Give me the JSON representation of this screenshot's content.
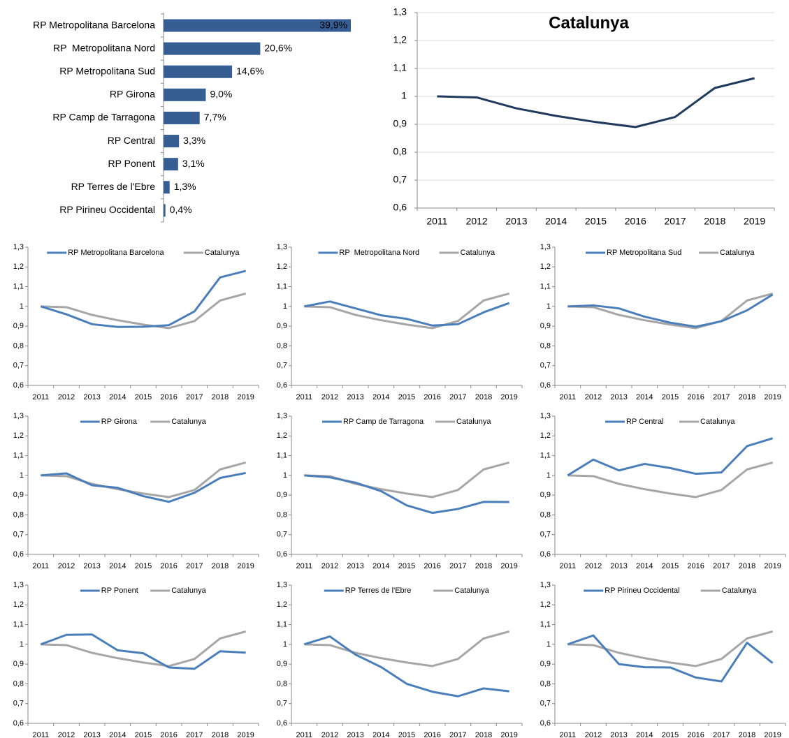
{
  "chart_data": [
    {
      "type": "hbar",
      "categories": [
        "RP Metropolitana Barcelona",
        "RP  Metropolitana Nord",
        "RP Metropolitana Sud",
        "RP Girona",
        "RP Camp de Tarragona",
        "RP Central",
        "RP Ponent",
        "RP Terres de l'Ebre",
        "RP Pirineu Occidental"
      ],
      "values": [
        39.9,
        20.6,
        14.6,
        9.0,
        7.7,
        3.3,
        3.1,
        1.3,
        0.4
      ],
      "value_labels": [
        "39,9%",
        "20,6%",
        "14,6%",
        "9,0%",
        "7,7%",
        "3,3%",
        "3,1%",
        "1,3%",
        "0,4%"
      ],
      "color": "#375e93",
      "xlim": [
        0,
        40
      ]
    },
    {
      "type": "line",
      "title": "Catalunya",
      "categories": [
        "2011",
        "2012",
        "2013",
        "2014",
        "2015",
        "2016",
        "2017",
        "2018",
        "2019"
      ],
      "values": [
        1,
        0.996,
        0.957,
        0.93,
        0.908,
        0.89,
        0.926,
        1.03,
        1.065
      ],
      "color": "#1f3a5c",
      "ylim": [
        0.6,
        1.3
      ],
      "yticks": [
        {
          "value": 0.6,
          "label": "0,6"
        },
        {
          "value": 0.7,
          "label": "0,7"
        },
        {
          "value": 0.8,
          "label": "0,8"
        },
        {
          "value": 0.9,
          "label": "0,9"
        },
        1,
        {
          "value": 1.1,
          "label": "1,1"
        },
        {
          "value": 1.2,
          "label": "1,2"
        },
        {
          "value": 1.3,
          "label": "1,3"
        }
      ],
      "grid": true
    },
    {
      "type": "line",
      "categories": [
        "2011",
        "2012",
        "2013",
        "2014",
        "2015",
        "2016",
        "2017",
        "2018",
        "2019"
      ],
      "ylim": [
        0.6,
        1.3
      ],
      "yticks": [
        {
          "value": 0.6,
          "label": "0,6"
        },
        {
          "value": 0.7,
          "label": "0,7"
        },
        {
          "value": 0.8,
          "label": "0,8"
        },
        {
          "value": 0.9,
          "label": "0,9"
        },
        1,
        {
          "value": 1.1,
          "label": "1,1"
        },
        {
          "value": 1.2,
          "label": "1,2"
        },
        {
          "value": 1.3,
          "label": "1,3"
        }
      ],
      "series": [
        {
          "name": "RP Metropolitana Barcelona",
          "color": "#4a7ebb",
          "values": [
            1,
            0.96,
            0.91,
            0.896,
            0.897,
            0.905,
            0.975,
            1.147,
            1.18
          ]
        },
        {
          "name": "Catalunya",
          "color": "#a6a6a6",
          "values": [
            1,
            0.996,
            0.957,
            0.93,
            0.908,
            0.89,
            0.926,
            1.03,
            1.065
          ]
        }
      ]
    },
    {
      "type": "line",
      "categories": [
        "2011",
        "2012",
        "2013",
        "2014",
        "2015",
        "2016",
        "2017",
        "2018",
        "2019"
      ],
      "ylim": [
        0.6,
        1.3
      ],
      "yticks": [
        {
          "value": 0.6,
          "label": "0,6"
        },
        {
          "value": 0.7,
          "label": "0,7"
        },
        {
          "value": 0.8,
          "label": "0,8"
        },
        {
          "value": 0.9,
          "label": "0,9"
        },
        1,
        {
          "value": 1.1,
          "label": "1,1"
        },
        {
          "value": 1.2,
          "label": "1,2"
        },
        {
          "value": 1.3,
          "label": "1,3"
        }
      ],
      "series": [
        {
          "name": "RP  Metropolitana Nord",
          "color": "#4a7ebb",
          "values": [
            1,
            1.025,
            0.99,
            0.955,
            0.937,
            0.903,
            0.91,
            0.97,
            1.017
          ]
        },
        {
          "name": "Catalunya",
          "color": "#a6a6a6",
          "values": [
            1,
            0.996,
            0.957,
            0.93,
            0.908,
            0.89,
            0.926,
            1.03,
            1.065
          ]
        }
      ]
    },
    {
      "type": "line",
      "categories": [
        "2011",
        "2012",
        "2013",
        "2014",
        "2015",
        "2016",
        "2017",
        "2018",
        "2019"
      ],
      "ylim": [
        0.6,
        1.3
      ],
      "yticks": [
        {
          "value": 0.6,
          "label": "0,6"
        },
        {
          "value": 0.7,
          "label": "0,7"
        },
        {
          "value": 0.8,
          "label": "0,8"
        },
        {
          "value": 0.9,
          "label": "0,9"
        },
        1,
        {
          "value": 1.1,
          "label": "1,1"
        },
        {
          "value": 1.2,
          "label": "1,2"
        },
        {
          "value": 1.3,
          "label": "1,3"
        }
      ],
      "series": [
        {
          "name": "RP Metropolitana Sud",
          "color": "#4a7ebb",
          "values": [
            1,
            1.005,
            0.99,
            0.948,
            0.918,
            0.897,
            0.925,
            0.98,
            1.06
          ]
        },
        {
          "name": "Catalunya",
          "color": "#a6a6a6",
          "values": [
            1,
            0.996,
            0.957,
            0.93,
            0.908,
            0.89,
            0.926,
            1.03,
            1.065
          ]
        }
      ]
    },
    {
      "type": "line",
      "categories": [
        "2011",
        "2012",
        "2013",
        "2014",
        "2015",
        "2016",
        "2017",
        "2018",
        "2019"
      ],
      "ylim": [
        0.6,
        1.3
      ],
      "yticks": [
        {
          "value": 0.6,
          "label": "0,6"
        },
        {
          "value": 0.7,
          "label": "0,7"
        },
        {
          "value": 0.8,
          "label": "0,8"
        },
        {
          "value": 0.9,
          "label": "0,9"
        },
        1,
        {
          "value": 1.1,
          "label": "1,1"
        },
        {
          "value": 1.2,
          "label": "1,2"
        },
        {
          "value": 1.3,
          "label": "1,3"
        }
      ],
      "series": [
        {
          "name": "RP Girona",
          "color": "#4a7ebb",
          "values": [
            1,
            1.01,
            0.95,
            0.937,
            0.895,
            0.866,
            0.912,
            0.987,
            1.012
          ]
        },
        {
          "name": "Catalunya",
          "color": "#a6a6a6",
          "values": [
            1,
            0.996,
            0.957,
            0.93,
            0.908,
            0.89,
            0.926,
            1.03,
            1.065
          ]
        }
      ]
    },
    {
      "type": "line",
      "categories": [
        "2011",
        "2012",
        "2013",
        "2014",
        "2015",
        "2016",
        "2017",
        "2018",
        "2019"
      ],
      "ylim": [
        0.6,
        1.3
      ],
      "yticks": [
        {
          "value": 0.6,
          "label": "0,6"
        },
        {
          "value": 0.7,
          "label": "0,7"
        },
        {
          "value": 0.8,
          "label": "0,8"
        },
        {
          "value": 0.9,
          "label": "0,9"
        },
        1,
        {
          "value": 1.1,
          "label": "1,1"
        },
        {
          "value": 1.2,
          "label": "1,2"
        },
        {
          "value": 1.3,
          "label": "1,3"
        }
      ],
      "series": [
        {
          "name": "RP Camp de Tarragona",
          "color": "#4a7ebb",
          "values": [
            1,
            0.99,
            0.963,
            0.92,
            0.848,
            0.81,
            0.83,
            0.866,
            0.865
          ]
        },
        {
          "name": "Catalunya",
          "color": "#a6a6a6",
          "values": [
            1,
            0.996,
            0.957,
            0.93,
            0.908,
            0.89,
            0.926,
            1.03,
            1.065
          ]
        }
      ]
    },
    {
      "type": "line",
      "categories": [
        "2011",
        "2012",
        "2013",
        "2014",
        "2015",
        "2016",
        "2017",
        "2018",
        "2019"
      ],
      "ylim": [
        0.6,
        1.3
      ],
      "yticks": [
        {
          "value": 0.6,
          "label": "0,6"
        },
        {
          "value": 0.7,
          "label": "0,7"
        },
        {
          "value": 0.8,
          "label": "0,8"
        },
        {
          "value": 0.9,
          "label": "0,9"
        },
        1,
        {
          "value": 1.1,
          "label": "1,1"
        },
        {
          "value": 1.2,
          "label": "1,2"
        },
        {
          "value": 1.3,
          "label": "1,3"
        }
      ],
      "series": [
        {
          "name": "RP Central",
          "color": "#4a7ebb",
          "values": [
            1,
            1.08,
            1.025,
            1.058,
            1.037,
            1.008,
            1.015,
            1.148,
            1.188
          ]
        },
        {
          "name": "Catalunya",
          "color": "#a6a6a6",
          "values": [
            1,
            0.996,
            0.957,
            0.93,
            0.908,
            0.89,
            0.926,
            1.03,
            1.065
          ]
        }
      ]
    },
    {
      "type": "line",
      "categories": [
        "2011",
        "2012",
        "2013",
        "2014",
        "2015",
        "2016",
        "2017",
        "2018",
        "2019"
      ],
      "ylim": [
        0.6,
        1.3
      ],
      "yticks": [
        {
          "value": 0.6,
          "label": "0,6"
        },
        {
          "value": 0.7,
          "label": "0,7"
        },
        {
          "value": 0.8,
          "label": "0,8"
        },
        {
          "value": 0.9,
          "label": "0,9"
        },
        1,
        {
          "value": 1.1,
          "label": "1,1"
        },
        {
          "value": 1.2,
          "label": "1,2"
        },
        {
          "value": 1.3,
          "label": "1,3"
        }
      ],
      "series": [
        {
          "name": "RP Ponent",
          "color": "#4a7ebb",
          "values": [
            1,
            1.048,
            1.05,
            0.97,
            0.955,
            0.883,
            0.876,
            0.965,
            0.958
          ]
        },
        {
          "name": "Catalunya",
          "color": "#a6a6a6",
          "values": [
            1,
            0.996,
            0.957,
            0.93,
            0.908,
            0.89,
            0.926,
            1.03,
            1.065
          ]
        }
      ]
    },
    {
      "type": "line",
      "categories": [
        "2011",
        "2012",
        "2013",
        "2014",
        "2015",
        "2016",
        "2017",
        "2018",
        "2019"
      ],
      "ylim": [
        0.6,
        1.3
      ],
      "yticks": [
        {
          "value": 0.6,
          "label": "0,6"
        },
        {
          "value": 0.7,
          "label": "0,7"
        },
        {
          "value": 0.8,
          "label": "0,8"
        },
        {
          "value": 0.9,
          "label": "0,9"
        },
        1,
        {
          "value": 1.1,
          "label": "1,1"
        },
        {
          "value": 1.2,
          "label": "1,2"
        },
        {
          "value": 1.3,
          "label": "1,3"
        }
      ],
      "series": [
        {
          "name": "RP Terres de l'Ebre",
          "color": "#4a7ebb",
          "values": [
            1,
            1.04,
            0.948,
            0.885,
            0.8,
            0.76,
            0.737,
            0.777,
            0.762
          ]
        },
        {
          "name": "Catalunya",
          "color": "#a6a6a6",
          "values": [
            1,
            0.996,
            0.957,
            0.93,
            0.908,
            0.89,
            0.926,
            1.03,
            1.065
          ]
        }
      ]
    },
    {
      "type": "line",
      "categories": [
        "2011",
        "2012",
        "2013",
        "2014",
        "2015",
        "2016",
        "2017",
        "2018",
        "2019"
      ],
      "ylim": [
        0.6,
        1.3
      ],
      "yticks": [
        {
          "value": 0.6,
          "label": "0,6"
        },
        {
          "value": 0.7,
          "label": "0,7"
        },
        {
          "value": 0.8,
          "label": "0,8"
        },
        {
          "value": 0.9,
          "label": "0,9"
        },
        1,
        {
          "value": 1.1,
          "label": "1,1"
        },
        {
          "value": 1.2,
          "label": "1,2"
        },
        {
          "value": 1.3,
          "label": "1,3"
        }
      ],
      "series": [
        {
          "name": "RP Pirineu Occidental",
          "color": "#4a7ebb",
          "values": [
            1,
            1.045,
            0.9,
            0.884,
            0.883,
            0.832,
            0.812,
            1.008,
            0.905
          ]
        },
        {
          "name": "Catalunya",
          "color": "#a6a6a6",
          "values": [
            1,
            0.996,
            0.957,
            0.93,
            0.908,
            0.89,
            0.926,
            1.03,
            1.065
          ]
        }
      ]
    }
  ]
}
